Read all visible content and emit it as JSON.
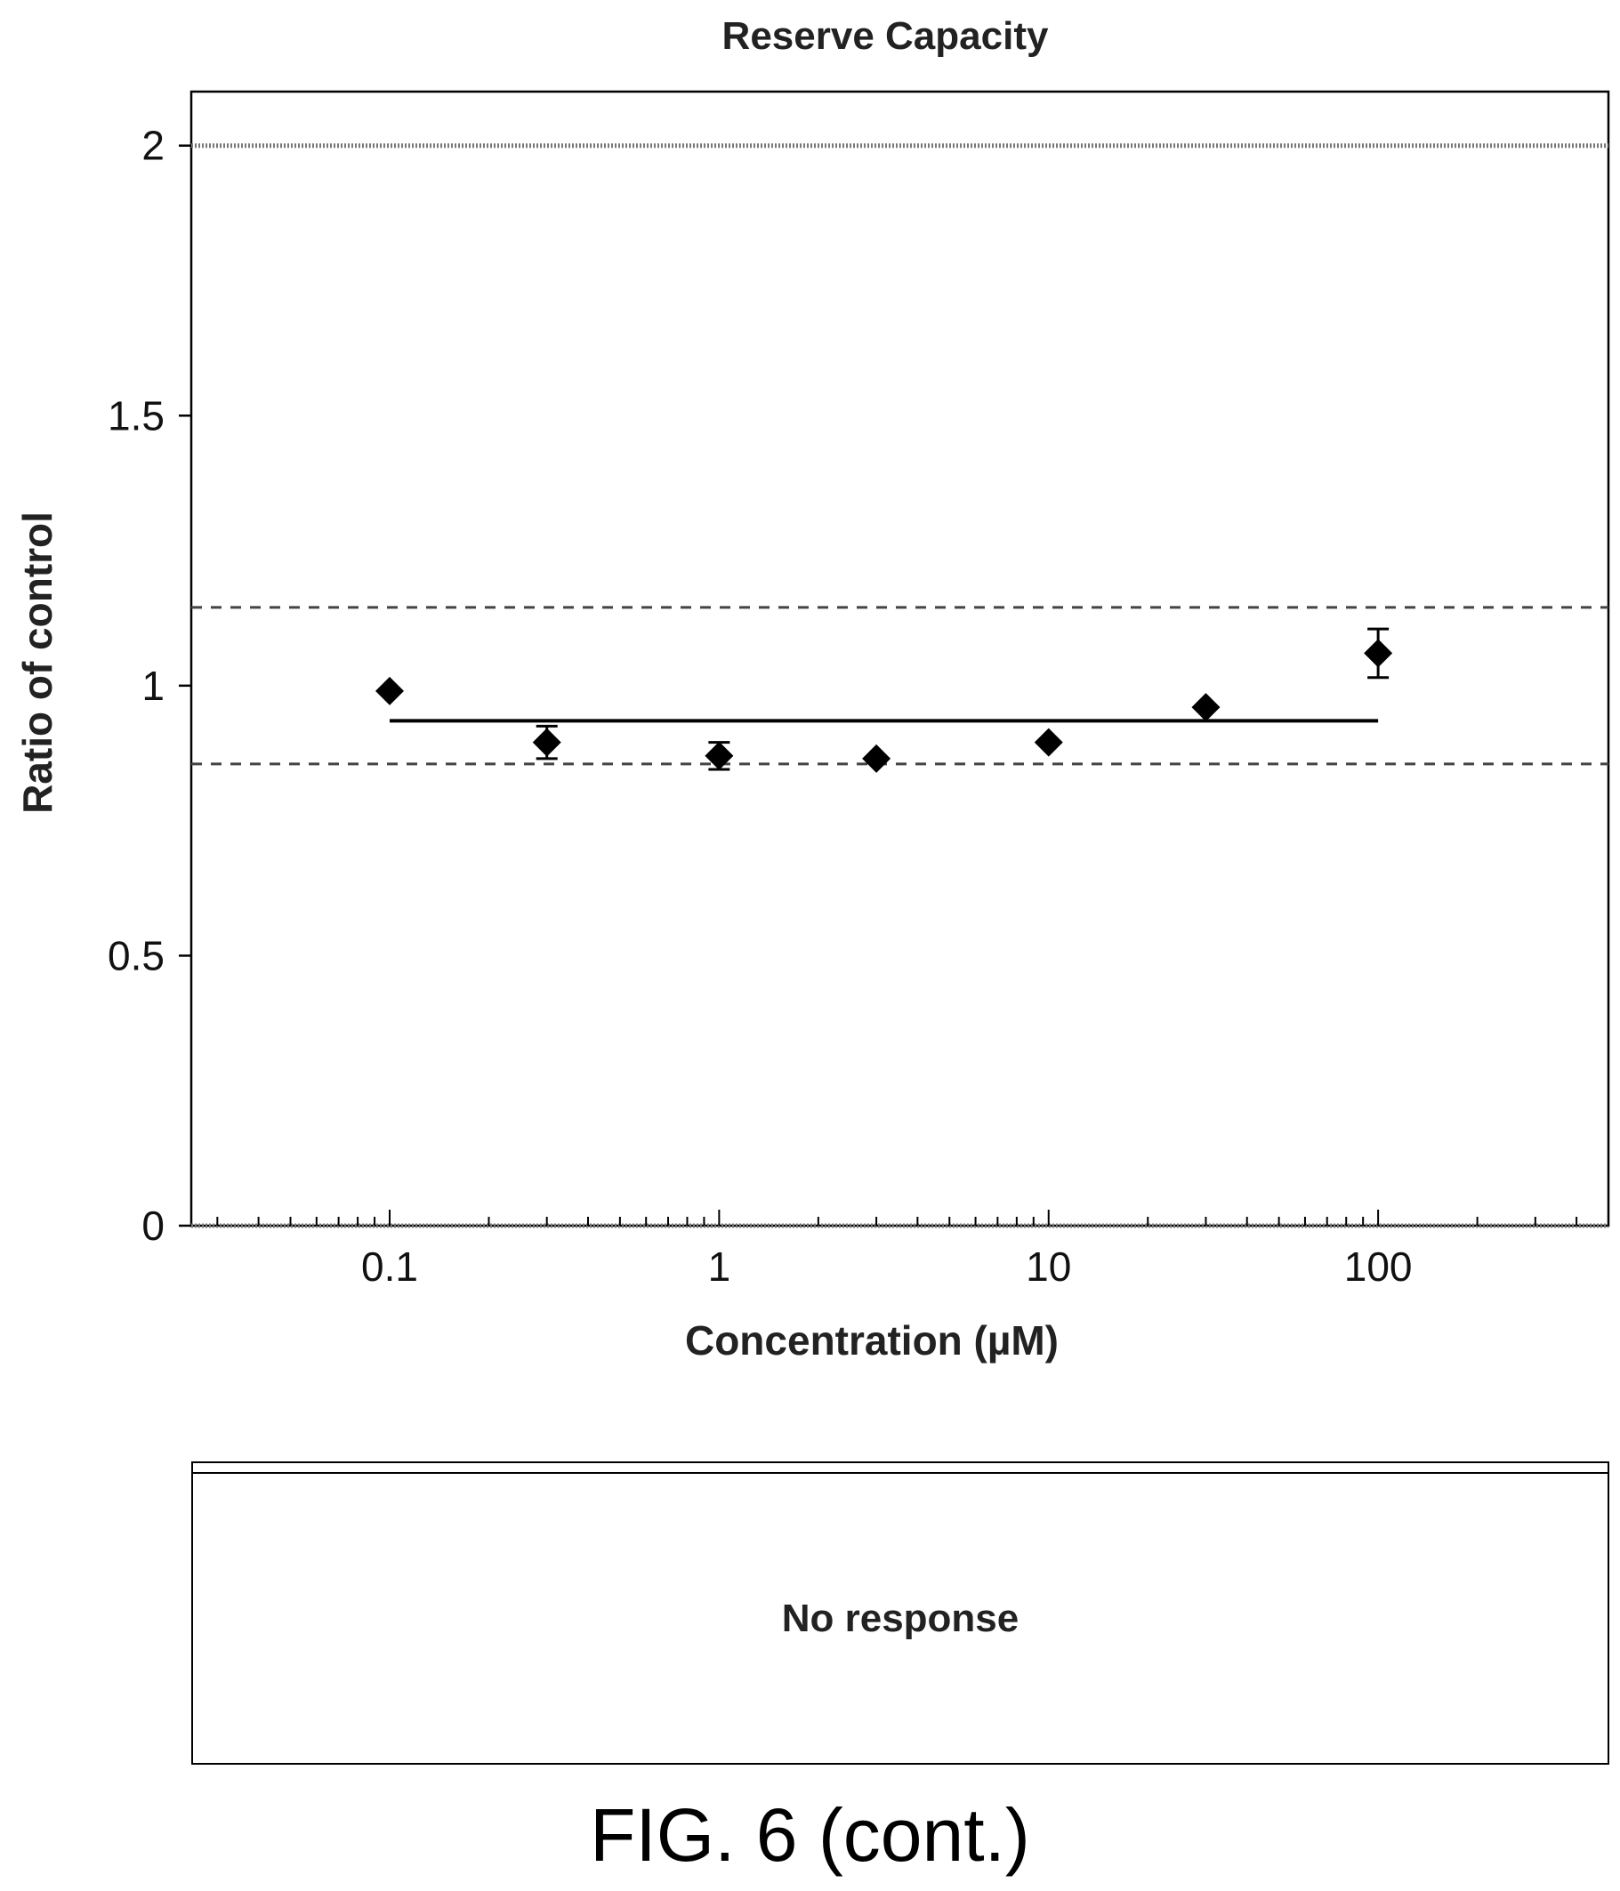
{
  "chart_data": {
    "type": "scatter",
    "title": "Reserve Capacity",
    "xlabel": "Concentration (µM)",
    "ylabel": "Ratio of control",
    "x_scale": "log",
    "xlim": [
      0.025,
      500
    ],
    "ylim": [
      0,
      2.1
    ],
    "x_ticks": [
      {
        "value": 0.1,
        "label": "0.1"
      },
      {
        "value": 1,
        "label": "1"
      },
      {
        "value": 10,
        "label": "10"
      },
      {
        "value": 100,
        "label": "100"
      }
    ],
    "y_ticks": [
      {
        "value": 0,
        "label": "0"
      },
      {
        "value": 0.5,
        "label": "0.5"
      },
      {
        "value": 1,
        "label": "1"
      },
      {
        "value": 1.5,
        "label": "1.5"
      },
      {
        "value": 2,
        "label": "2"
      }
    ],
    "grid": false,
    "points": [
      {
        "x": 0.1,
        "y": 0.99,
        "err": 0.0
      },
      {
        "x": 0.3,
        "y": 0.895,
        "err": 0.03
      },
      {
        "x": 1.0,
        "y": 0.87,
        "err": 0.025
      },
      {
        "x": 3.0,
        "y": 0.865,
        "err": 0.0
      },
      {
        "x": 10.0,
        "y": 0.895,
        "err": 0.0
      },
      {
        "x": 30.0,
        "y": 0.96,
        "err": 0.0
      },
      {
        "x": 100.0,
        "y": 1.06,
        "err": 0.045
      }
    ],
    "fit_line": {
      "x_from": 0.1,
      "x_to": 100,
      "y": 0.935
    },
    "threshold_lines": [
      {
        "y": 1.145,
        "style": "dashed"
      },
      {
        "y": 0.855,
        "style": "dashed"
      }
    ],
    "reference_line": {
      "y": 2.0,
      "style": "dotted"
    },
    "colors": {
      "marker": "#000000",
      "line": "#000000",
      "dashed": "#444444",
      "reference": "#777777"
    }
  },
  "response_panel": {
    "text": "No response"
  },
  "caption": "FIG. 6 (cont.)"
}
